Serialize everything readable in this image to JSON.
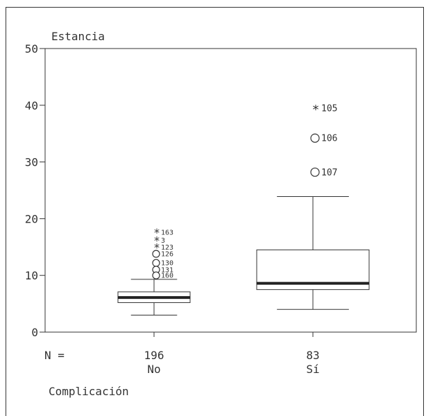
{
  "chart_data": {
    "type": "boxplot",
    "ylabel": "Estancia",
    "xlabel": "Complicación",
    "ylim": [
      0,
      50
    ],
    "yticks": [
      0,
      10,
      20,
      30,
      40,
      50
    ],
    "n_label": "N =",
    "groups": [
      {
        "category": "No",
        "n": "196",
        "whisker_low": 3,
        "q1": 5.2,
        "median": 6.1,
        "q3": 7.1,
        "whisker_high": 9.3,
        "outliers": [
          {
            "value": 17.6,
            "label": "163",
            "marker": "star"
          },
          {
            "value": 16.2,
            "label": "3",
            "marker": "star"
          },
          {
            "value": 15.0,
            "label": "123",
            "marker": "star"
          },
          {
            "value": 13.8,
            "label": "126",
            "marker": "circle"
          },
          {
            "value": 12.2,
            "label": "130",
            "marker": "circle"
          },
          {
            "value": 11.0,
            "label": "131",
            "marker": "circle"
          },
          {
            "value": 10.0,
            "label": "160",
            "marker": "circle"
          }
        ]
      },
      {
        "category": "Sí",
        "n": "83",
        "whisker_low": 4,
        "q1": 7.5,
        "median": 8.6,
        "q3": 14.5,
        "whisker_high": 23.9,
        "outliers": [
          {
            "value": 39.5,
            "label": "105",
            "marker": "star"
          },
          {
            "value": 34.2,
            "label": "106",
            "marker": "circle"
          },
          {
            "value": 28.2,
            "label": "107",
            "marker": "circle"
          }
        ]
      }
    ]
  }
}
